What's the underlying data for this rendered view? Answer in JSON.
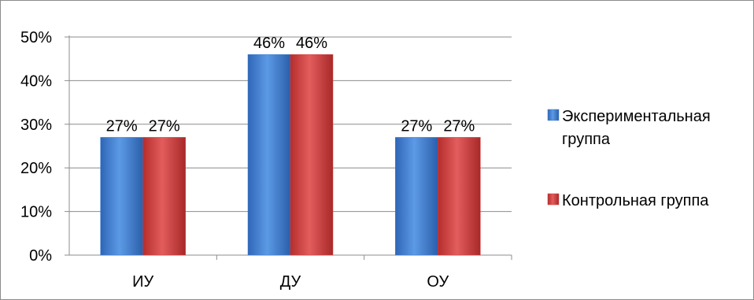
{
  "chart_data": {
    "type": "bar",
    "categories": [
      "ИУ",
      "ДУ",
      "ОУ"
    ],
    "series": [
      {
        "name": "Экспериментальная группа",
        "legend_lines": [
          "Экспериментальная",
          "группа"
        ],
        "values": [
          27,
          46,
          27
        ],
        "labels": [
          "27%",
          "46%",
          "27%"
        ],
        "color": "#3f7fd0"
      },
      {
        "name": "Контрольная группа",
        "legend_lines": [
          "Контрольная группа"
        ],
        "values": [
          27,
          46,
          27
        ],
        "labels": [
          "27%",
          "46%",
          "27%"
        ],
        "color": "#d23f3f"
      }
    ],
    "y_ticks": [
      "0%",
      "10%",
      "20%",
      "30%",
      "40%",
      "50%"
    ],
    "ylim": [
      0,
      50
    ],
    "grid": true,
    "legend_position": "right"
  }
}
